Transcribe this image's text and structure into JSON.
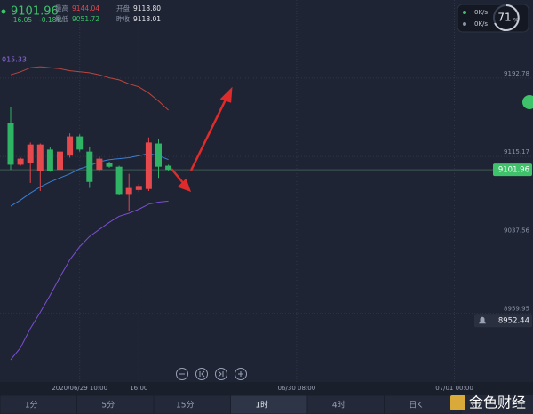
{
  "header": {
    "price": "9101.96",
    "change": "-16.05",
    "change_pct": "-0.18%",
    "stats": [
      {
        "label": "最高",
        "value": "9144.04",
        "color": "#e5484d"
      },
      {
        "label": "开盘",
        "value": "9118.80",
        "color": "#e6e8ee"
      },
      {
        "label": "最低",
        "value": "9051.72",
        "color": "#3ec26a"
      },
      {
        "label": "昨收",
        "value": "9118.01",
        "color": "#e6e8ee"
      }
    ]
  },
  "network": {
    "upload": "0K/s",
    "download": "0K/s",
    "usage": "71",
    "usage_unit": "%"
  },
  "chart_data": {
    "type": "candlestick",
    "indicator_label": "015.33",
    "categories": [
      null,
      null,
      null,
      null,
      null,
      null,
      null,
      "2020/06/29 10:00",
      null,
      null,
      null,
      null,
      null,
      "16:00",
      null,
      null,
      null,
      null,
      null,
      null,
      null,
      null,
      null,
      null,
      null,
      null,
      null,
      null,
      null,
      "06/30 08:00",
      null,
      null,
      null,
      null,
      null,
      null,
      null,
      null,
      null,
      null,
      null,
      null,
      null,
      null,
      null,
      "07/01 00:00"
    ],
    "open": [
      9148,
      9107,
      9109,
      9101,
      9122,
      9102,
      9116,
      9135,
      9120,
      9102,
      9109,
      9105,
      9078,
      9082,
      9083,
      9128,
      9106,
      null,
      null,
      null,
      null,
      null,
      null,
      null,
      null,
      null,
      null,
      null,
      null,
      null,
      null,
      null,
      null,
      null,
      null,
      null,
      null,
      null,
      null,
      null,
      null,
      null,
      null,
      null,
      null,
      null
    ],
    "high": [
      9164,
      9114,
      9129,
      9128,
      9124,
      9122,
      9138,
      9137,
      9125,
      9115,
      9110,
      9106,
      9098,
      9088,
      9134,
      9132,
      9107,
      null,
      null,
      null,
      null,
      null,
      null,
      null,
      null,
      null,
      null,
      null,
      null,
      null,
      null,
      null,
      null,
      null,
      null,
      null,
      null,
      null,
      null,
      null,
      null,
      null,
      null,
      null,
      null,
      null
    ],
    "low": [
      9102,
      9106,
      9089,
      9081,
      9100,
      9100,
      9114,
      9120,
      9084,
      9100,
      9104,
      9077,
      9061,
      9080,
      9081,
      9094,
      9101,
      null,
      null,
      null,
      null,
      null,
      null,
      null,
      null,
      null,
      null,
      null,
      null,
      null,
      null,
      null,
      null,
      null,
      null,
      null,
      null,
      null,
      null,
      null,
      null,
      null,
      null,
      null,
      null,
      null
    ],
    "close": [
      9107,
      9113,
      9127,
      9127,
      9101,
      9120,
      9135,
      9122,
      9090,
      9113,
      9105,
      9078,
      9084,
      9086,
      9129,
      9105,
      9101.96,
      null,
      null,
      null,
      null,
      null,
      null,
      null,
      null,
      null,
      null,
      null,
      null,
      null,
      null,
      null,
      null,
      null,
      null,
      null,
      null,
      null,
      null,
      null,
      null,
      null,
      null,
      null,
      null,
      null
    ],
    "up_color": "#e5484d",
    "down_color": "#2fb365",
    "overlays": [
      {
        "color": "#b8453f",
        "values": [
          9196,
          9199,
          9203,
          9204,
          9203,
          9202,
          9200,
          9199,
          9198,
          9196,
          9193,
          9191,
          9187,
          9184,
          9178,
          9170,
          9161,
          null,
          null,
          null,
          null,
          null,
          null,
          null,
          null,
          null,
          null,
          null,
          null,
          null,
          null,
          null,
          null,
          null,
          null,
          null,
          null,
          null,
          null,
          null,
          null,
          null,
          null,
          null,
          null,
          null
        ]
      },
      {
        "color": "#3b7fd4",
        "values": [
          9066,
          9072,
          9079,
          9085,
          9090,
          9094,
          9098,
          9103,
          9106,
          9110,
          9112,
          9113,
          9114,
          9116,
          9118,
          9116,
          9112,
          null,
          null,
          null,
          null,
          null,
          null,
          null,
          null,
          null,
          null,
          null,
          null,
          null,
          null,
          null,
          null,
          null,
          null,
          null,
          null,
          null,
          null,
          null,
          null,
          null,
          null,
          null,
          null,
          null
        ]
      },
      {
        "color": "#7a4fd0",
        "values": [
          8914,
          8926,
          8945,
          8961,
          8978,
          8996,
          9013,
          9026,
          9036,
          9043,
          9050,
          9056,
          9059,
          9063,
          9068,
          9070,
          9071,
          null,
          null,
          null,
          null,
          null,
          null,
          null,
          null,
          null,
          null,
          null,
          null,
          null,
          null,
          null,
          null,
          null,
          null,
          null,
          null,
          null,
          null,
          null,
          null,
          null,
          null,
          null,
          null,
          null
        ]
      }
    ],
    "ylim": [
      8892,
      9270
    ],
    "yticks": [
      8959.95,
      9037.56,
      9115.17,
      9192.78
    ],
    "grid": true,
    "last_price": 9101.96,
    "alert_price": 8952.44
  },
  "timeframes": [
    "1分",
    "5分",
    "15分",
    "1时",
    "4时",
    "日K"
  ],
  "selected_timeframe": 3,
  "watermark": "金色财经"
}
